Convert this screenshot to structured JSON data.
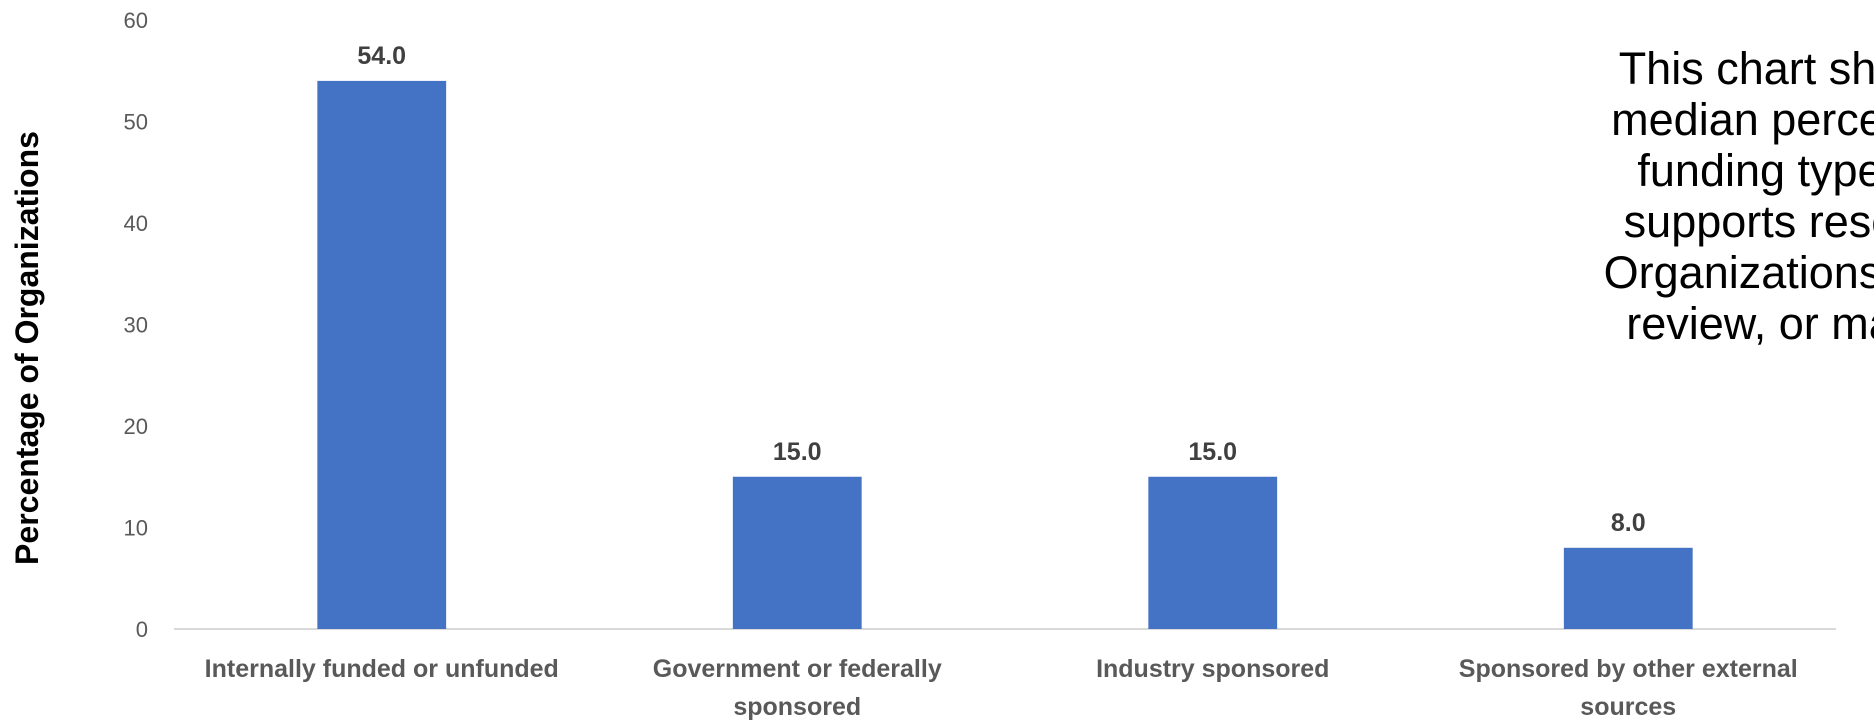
{
  "chart_data": {
    "type": "bar",
    "categories": [
      [
        "Internally funded or unfunded"
      ],
      [
        "Government or federally",
        "sponsored"
      ],
      [
        "Industry sponsored"
      ],
      [
        "Sponsored by other external",
        "sources"
      ]
    ],
    "values": [
      54.0,
      15.0,
      15.0,
      8.0
    ],
    "data_labels": [
      "54.0",
      "15.0",
      "15.0",
      "8.0"
    ],
    "ylabel": "Percentage of Organizations",
    "xlabel": "",
    "ylim": [
      0,
      60
    ],
    "yticks": [
      0,
      10,
      20,
      30,
      40,
      50,
      60
    ],
    "grid": false,
    "bar_color": "#4472C4",
    "annotation": [
      "This chart sho",
      "median percen",
      "funding type",
      "supports rese",
      "Organizations c",
      "review, or ma"
    ]
  }
}
